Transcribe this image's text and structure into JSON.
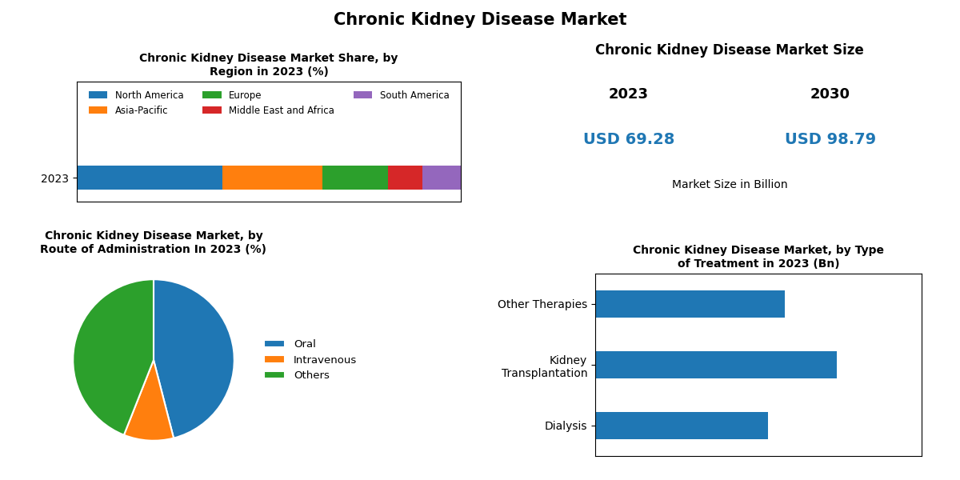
{
  "title": "Chronic Kidney Disease Market",
  "chart_data": [
    {
      "type": "bar",
      "orientation": "horizontal",
      "stacked": true,
      "title": "Chronic Kidney Disease Market Share, by\nRegion in 2023 (%)",
      "categories": [
        "2023"
      ],
      "series": [
        {
          "name": "North America",
          "values": [
            38
          ]
        },
        {
          "name": "Asia-Pacific",
          "values": [
            26
          ]
        },
        {
          "name": "Europe",
          "values": [
            17
          ]
        },
        {
          "name": "Middle East and Africa",
          "values": [
            9
          ]
        },
        {
          "name": "South America",
          "values": [
            10
          ]
        }
      ],
      "xlim": [
        0,
        100
      ],
      "tick_labels": "y",
      "legend": "upper center"
    },
    {
      "type": "text",
      "title": "Chronic Kidney Disease Market Size",
      "categories": [
        "2023",
        "2030"
      ],
      "values": [
        69.28,
        98.79
      ],
      "value_labels": [
        "USD 69.28",
        "USD 98.79"
      ],
      "annotations": [
        "Market Size in Billion"
      ]
    },
    {
      "type": "pie",
      "title": "Chronic Kidney Disease Market, by\nRoute of Administration In 2023 (%)",
      "categories": [
        "Oral",
        "Intravenous",
        "Others"
      ],
      "values": [
        46,
        10,
        44
      ],
      "legend": "center left"
    },
    {
      "type": "bar",
      "orientation": "horizontal",
      "title": "Chronic Kidney Disease Market, by Type\nof Treatment in 2023 (Bn)",
      "categories": [
        "Other Therapies",
        "Kidney\nTransplantation",
        "Dialysis"
      ],
      "values": [
        22,
        28,
        20
      ],
      "xlim": [
        0,
        37.8
      ],
      "tick_labels": "y"
    }
  ]
}
